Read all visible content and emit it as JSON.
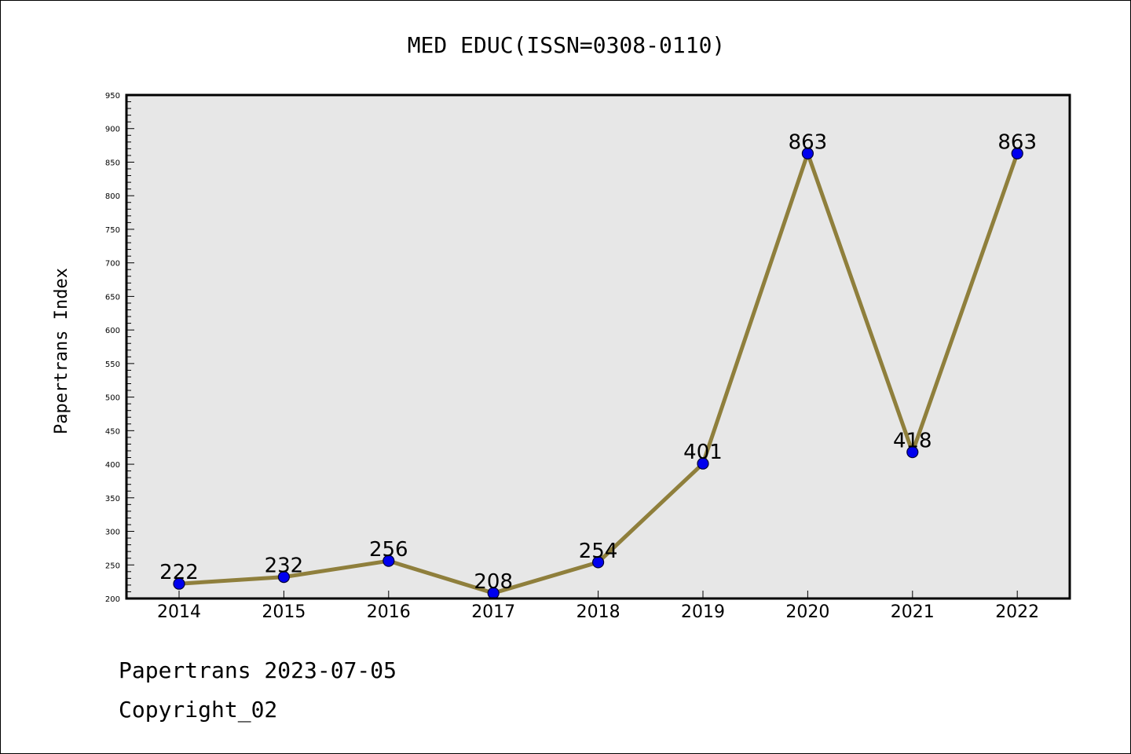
{
  "chart_data": {
    "type": "line",
    "title": "MED EDUC(ISSN=0308-0110)",
    "xlabel": "",
    "ylabel": "Papertrans Index",
    "categories": [
      "2014",
      "2015",
      "2016",
      "2017",
      "2018",
      "2019",
      "2020",
      "2021",
      "2022"
    ],
    "series": [
      {
        "values": [
          222,
          232,
          256,
          208,
          254,
          401,
          863,
          418,
          863
        ]
      }
    ],
    "data_labels": [
      "222",
      "232",
      "256",
      "208",
      "254",
      "401",
      "863",
      "418",
      "863"
    ],
    "ylim": [
      200,
      950
    ],
    "yticks": [
      200,
      250,
      300,
      350,
      400,
      450,
      500,
      550,
      600,
      650,
      700,
      750,
      800,
      850,
      900,
      950
    ],
    "grid": false,
    "legend": "none",
    "colors": {
      "line": "#8f7f3c",
      "marker_fill": "#0000ee",
      "marker_stroke": "#000033",
      "plot_background": "#e7e7e7",
      "axis": "#000000"
    }
  },
  "footer": {
    "date_line": "Papertrans 2023-07-05",
    "copyright": "Copyright_02"
  }
}
